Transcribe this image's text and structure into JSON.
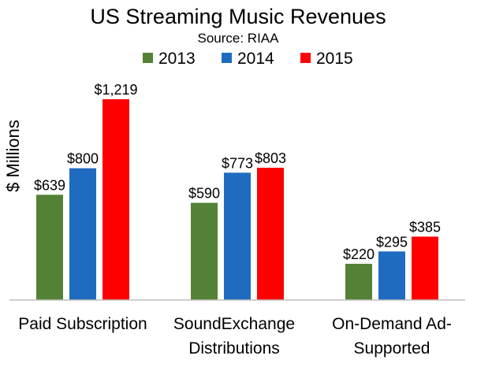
{
  "chart_data": {
    "type": "bar",
    "title": "US Streaming Music Revenues",
    "subtitle": "Source: RIAA",
    "xlabel": "",
    "ylabel": "$ Millions",
    "categories": [
      [
        "Paid Subscription"
      ],
      [
        "SoundExchange",
        "Distributions"
      ],
      [
        "On-Demand Ad-",
        "Supported"
      ]
    ],
    "series": [
      {
        "name": "2013",
        "color": "#538135",
        "values": [
          639,
          590,
          220
        ],
        "labels": [
          "$639",
          "$590",
          "$220"
        ]
      },
      {
        "name": "2014",
        "color": "#1f6bbf",
        "values": [
          800,
          773,
          295
        ],
        "labels": [
          "$800",
          "$773",
          "$295"
        ]
      },
      {
        "name": "2015",
        "color": "#ff0000",
        "values": [
          1219,
          803,
          385
        ],
        "labels": [
          "$1,219",
          "$803",
          "$385"
        ]
      }
    ],
    "ylim": [
      0,
      1300
    ],
    "grid": false,
    "legend": "top-center"
  }
}
